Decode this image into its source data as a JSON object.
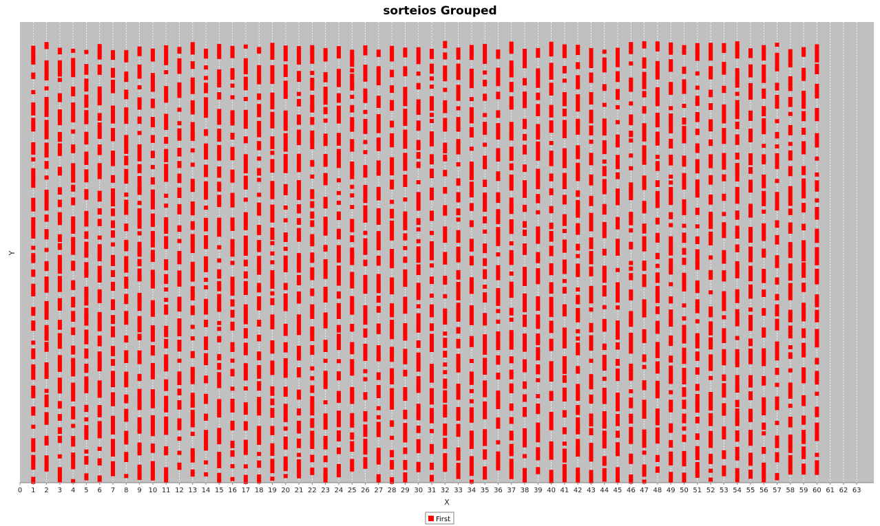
{
  "chart_data": {
    "type": "scatter",
    "title": "sorteios Grouped",
    "xlabel": "X",
    "ylabel": "Y",
    "xlim": [
      0,
      63.5
    ],
    "x_ticks": [
      0,
      1,
      2,
      3,
      4,
      5,
      6,
      7,
      8,
      9,
      10,
      11,
      12,
      13,
      14,
      15,
      16,
      17,
      18,
      19,
      20,
      21,
      22,
      23,
      24,
      25,
      26,
      27,
      28,
      29,
      30,
      31,
      32,
      33,
      34,
      35,
      36,
      37,
      38,
      39,
      40,
      41,
      42,
      43,
      44,
      45,
      46,
      47,
      48,
      49,
      50,
      51,
      52,
      53,
      54,
      55,
      56,
      57,
      58,
      59,
      60,
      61,
      62,
      63
    ],
    "y_axis_ticks_visible": false,
    "grid": true,
    "legend_position": "bottom-center",
    "series": [
      {
        "name": "First",
        "color": "#ff0000",
        "x_values": [
          1,
          2,
          3,
          4,
          5,
          6,
          7,
          8,
          9,
          10,
          11,
          12,
          13,
          14,
          15,
          16,
          17,
          18,
          19,
          20,
          21,
          22,
          23,
          24,
          25,
          26,
          27,
          28,
          29,
          30,
          31,
          32,
          33,
          34,
          35,
          36,
          37,
          38,
          39,
          40,
          41,
          42,
          43,
          44,
          45,
          46,
          47,
          48,
          49,
          50,
          51,
          52,
          53,
          54,
          55,
          56,
          57,
          58,
          59,
          60
        ],
        "y_points_per_x": 1500,
        "y_range_normalized": [
          0,
          1
        ],
        "note": "Each integer X from 1 to 60 holds a dense vertical column of draws spread across the full Y range."
      }
    ],
    "plot_background": "#c0c0c0",
    "gridline_color": "#ffffff"
  }
}
